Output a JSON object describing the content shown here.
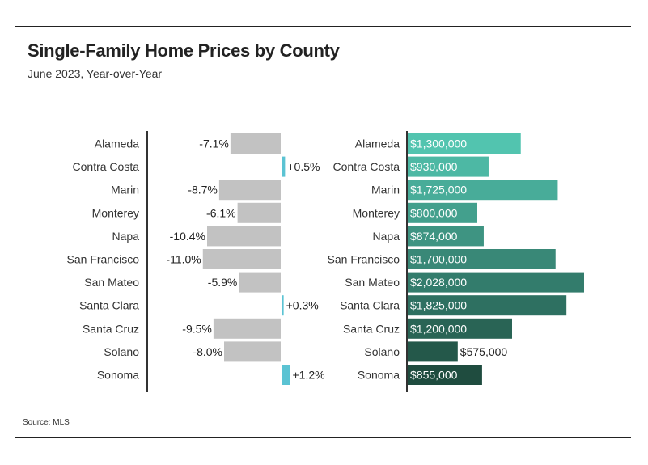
{
  "header": {
    "title": "Single-Family Home Prices by County",
    "subtitle": "June 2023, Year-over-Year"
  },
  "footer": {
    "source": "Source: MLS"
  },
  "colors": {
    "negative": "#c2c2c2",
    "positive": "#5bc3d3",
    "price_gradient_start": "#52c4af",
    "price_gradient_end": "#1f4c3f",
    "axis": "#333333",
    "rule": "#222222"
  },
  "chart_data": [
    {
      "type": "bar",
      "orientation": "horizontal",
      "title": "",
      "xlabel": "",
      "ylabel": "",
      "xlim": [
        -11,
        1.2
      ],
      "categories": [
        "Alameda",
        "Contra Costa",
        "Marin",
        "Monterey",
        "Napa",
        "San Francisco",
        "San Mateo",
        "Santa Clara",
        "Santa Cruz",
        "Solano",
        "Sonoma"
      ],
      "values": [
        -7.1,
        0.5,
        -8.7,
        -6.1,
        -10.4,
        -11.0,
        -5.9,
        0.3,
        -9.5,
        -8.0,
        1.2
      ],
      "labels": [
        "-7.1%",
        "+0.5%",
        "-8.7%",
        "-6.1%",
        "-10.4%",
        "-11.0%",
        "-5.9%",
        "+0.3%",
        "-9.5%",
        "-8.0%",
        "+1.2%"
      ],
      "grid": false
    },
    {
      "type": "bar",
      "orientation": "horizontal",
      "title": "",
      "xlabel": "",
      "ylabel": "",
      "xlim": [
        0,
        2028000
      ],
      "categories": [
        "Alameda",
        "Contra Costa",
        "Marin",
        "Monterey",
        "Napa",
        "San Francisco",
        "San Mateo",
        "Santa Clara",
        "Santa Cruz",
        "Solano",
        "Sonoma"
      ],
      "values": [
        1300000,
        930000,
        1725000,
        800000,
        874000,
        1700000,
        2028000,
        1825000,
        1200000,
        575000,
        855000
      ],
      "labels": [
        "$1,300,000",
        "$930,000",
        "$1,725,000",
        "$800,000",
        "$874,000",
        "$1,700,000",
        "$2,028,000",
        "$1,825,000",
        "$1,200,000",
        "$575,000",
        "$855,000"
      ],
      "grid": false
    }
  ]
}
